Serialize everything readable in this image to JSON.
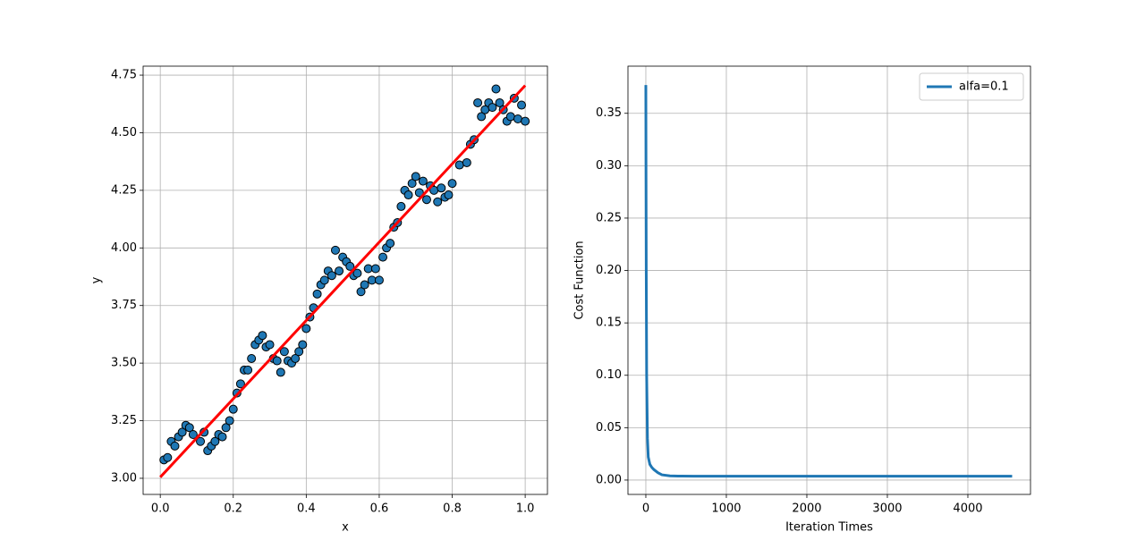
{
  "chart_data": [
    {
      "type": "scatter",
      "xlabel": "x",
      "ylabel": "y",
      "xlim": [
        -0.047,
        1.061
      ],
      "ylim": [
        2.93,
        4.789
      ],
      "xticks": [
        {
          "value": 0,
          "label": "0.0"
        },
        {
          "value": 0.2,
          "label": "0.2"
        },
        {
          "value": 0.4,
          "label": "0.4"
        },
        {
          "value": 0.6,
          "label": "0.6"
        },
        {
          "value": 0.8,
          "label": "0.8"
        },
        {
          "value": 1,
          "label": "1.0"
        }
      ],
      "yticks": [
        {
          "value": 3,
          "label": "3.00"
        },
        {
          "value": 3.25,
          "label": "3.25"
        },
        {
          "value": 3.5,
          "label": "3.50"
        },
        {
          "value": 3.75,
          "label": "3.75"
        },
        {
          "value": 4,
          "label": "4.00"
        },
        {
          "value": 4.25,
          "label": "4.25"
        },
        {
          "value": 4.5,
          "label": "4.50"
        },
        {
          "value": 4.75,
          "label": "4.75"
        }
      ],
      "grid": true,
      "series": [
        {
          "kind": "scatter",
          "color": "#1f77b4",
          "edgecolor": "#000000",
          "x": [
            0.01,
            0.02,
            0.03,
            0.04,
            0.05,
            0.06,
            0.07,
            0.08,
            0.09,
            0.11,
            0.12,
            0.13,
            0.14,
            0.15,
            0.16,
            0.17,
            0.18,
            0.19,
            0.2,
            0.21,
            0.22,
            0.23,
            0.24,
            0.25,
            0.26,
            0.27,
            0.28,
            0.29,
            0.3,
            0.31,
            0.32,
            0.33,
            0.34,
            0.35,
            0.36,
            0.37,
            0.38,
            0.39,
            0.4,
            0.41,
            0.42,
            0.43,
            0.44,
            0.45,
            0.46,
            0.47,
            0.48,
            0.49,
            0.5,
            0.51,
            0.52,
            0.53,
            0.54,
            0.55,
            0.56,
            0.57,
            0.58,
            0.59,
            0.6,
            0.61,
            0.62,
            0.63,
            0.64,
            0.65,
            0.66,
            0.67,
            0.68,
            0.69,
            0.7,
            0.71,
            0.72,
            0.73,
            0.74,
            0.75,
            0.76,
            0.77,
            0.78,
            0.79,
            0.8,
            0.82,
            0.84,
            0.85,
            0.86,
            0.87,
            0.88,
            0.89,
            0.9,
            0.91,
            0.92,
            0.93,
            0.94,
            0.95,
            0.96,
            0.97,
            0.98,
            0.99,
            1.0
          ],
          "values": [
            3.08,
            3.09,
            3.16,
            3.14,
            3.18,
            3.2,
            3.23,
            3.22,
            3.19,
            3.16,
            3.2,
            3.12,
            3.14,
            3.16,
            3.19,
            3.18,
            3.22,
            3.25,
            3.3,
            3.37,
            3.41,
            3.47,
            3.47,
            3.52,
            3.58,
            3.6,
            3.62,
            3.57,
            3.58,
            3.52,
            3.51,
            3.46,
            3.55,
            3.51,
            3.5,
            3.52,
            3.55,
            3.58,
            3.65,
            3.7,
            3.74,
            3.8,
            3.84,
            3.86,
            3.9,
            3.88,
            3.99,
            3.9,
            3.96,
            3.94,
            3.92,
            3.88,
            3.89,
            3.81,
            3.84,
            3.91,
            3.86,
            3.91,
            3.86,
            3.96,
            4.0,
            4.02,
            4.09,
            4.11,
            4.18,
            4.25,
            4.23,
            4.28,
            4.31,
            4.24,
            4.29,
            4.21,
            4.27,
            4.25,
            4.2,
            4.26,
            4.22,
            4.23,
            4.28,
            4.36,
            4.37,
            4.45,
            4.47,
            4.63,
            4.57,
            4.6,
            4.63,
            4.61,
            4.69,
            4.63,
            4.6,
            4.55,
            4.57,
            4.65,
            4.56,
            4.62,
            4.55
          ]
        },
        {
          "kind": "line",
          "color": "#ff0000",
          "x": [
            0,
            1
          ],
          "values": [
            3.005,
            4.705
          ]
        }
      ]
    },
    {
      "type": "line",
      "xlabel": "Iteration Times",
      "ylabel": "Cost Function",
      "xlim": [
        -222,
        4778
      ],
      "ylim": [
        -0.0137,
        0.395
      ],
      "xticks": [
        0,
        1000,
        2000,
        3000,
        4000
      ],
      "yticks": [
        {
          "value": 0,
          "label": "0.00"
        },
        {
          "value": 0.05,
          "label": "0.05"
        },
        {
          "value": 0.1,
          "label": "0.10"
        },
        {
          "value": 0.15,
          "label": "0.15"
        },
        {
          "value": 0.2,
          "label": "0.20"
        },
        {
          "value": 0.25,
          "label": "0.25"
        },
        {
          "value": 0.3,
          "label": "0.30"
        },
        {
          "value": 0.35,
          "label": "0.35"
        }
      ],
      "grid": true,
      "legend": "upper right",
      "series": [
        {
          "kind": "line",
          "name": "alfa=0.1",
          "color": "#1f77b4",
          "x": [
            0,
            2,
            5,
            10,
            20,
            30,
            50,
            75,
            100,
            150,
            200,
            300,
            400,
            600,
            1000,
            2000,
            3000,
            4000,
            4550
          ],
          "values": [
            0.377,
            0.3,
            0.2,
            0.1,
            0.04,
            0.022,
            0.015,
            0.012,
            0.01,
            0.007,
            0.005,
            0.004,
            0.0038,
            0.0037,
            0.0037,
            0.0037,
            0.0037,
            0.0037,
            0.0037
          ]
        }
      ]
    }
  ]
}
